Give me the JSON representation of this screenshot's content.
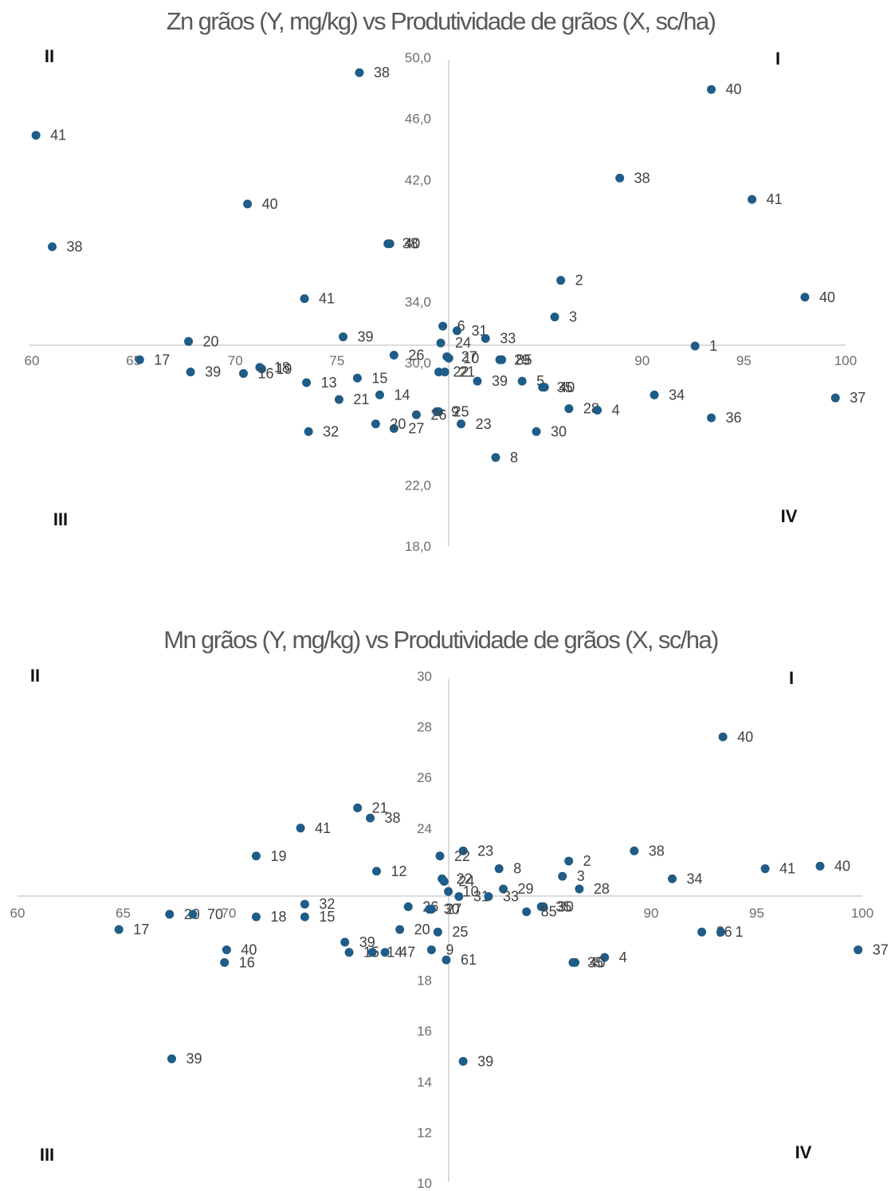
{
  "chart_data": [
    {
      "type": "scatter",
      "title": "Zn grãos (Y, mg/kg) vs Produtividade de grãos (X, sc/ha)",
      "xlim": [
        60,
        100
      ],
      "ylim": [
        18,
        50
      ],
      "x_ticks": [
        "60",
        "65",
        "70",
        "75",
        "90",
        "95",
        "100"
      ],
      "y_ticks": [
        "50,0",
        "46,0",
        "42,0",
        "34,0",
        "30,0",
        "22,0",
        "18,0"
      ],
      "quadrants": [
        "I",
        "II",
        "III",
        "IV"
      ],
      "marker_color": "#1f5c87",
      "points": [
        {
          "label": "38",
          "x": 76.1,
          "y": 49.0
        },
        {
          "label": "40",
          "x": 93.4,
          "y": 47.9
        },
        {
          "label": "41",
          "x": 60.2,
          "y": 44.9
        },
        {
          "label": "38",
          "x": 88.9,
          "y": 42.1
        },
        {
          "label": "41",
          "x": 95.4,
          "y": 40.7
        },
        {
          "label": "40",
          "x": 70.6,
          "y": 40.4
        },
        {
          "label": "38",
          "x": 61.0,
          "y": 37.6
        },
        {
          "label": "38",
          "x": 77.5,
          "y": 37.8
        },
        {
          "label": "40",
          "x": 77.6,
          "y": 37.8
        },
        {
          "label": "2",
          "x": 86.0,
          "y": 35.4
        },
        {
          "label": "41",
          "x": 73.4,
          "y": 34.2
        },
        {
          "label": "40",
          "x": 98.0,
          "y": 34.3
        },
        {
          "label": "3",
          "x": 85.7,
          "y": 33.0
        },
        {
          "label": "6",
          "x": 80.2,
          "y": 32.4
        },
        {
          "label": "31",
          "x": 80.9,
          "y": 32.1
        },
        {
          "label": "33",
          "x": 82.3,
          "y": 31.6
        },
        {
          "label": "39",
          "x": 75.3,
          "y": 31.7
        },
        {
          "label": "24",
          "x": 80.1,
          "y": 31.3
        },
        {
          "label": "20",
          "x": 67.7,
          "y": 31.4
        },
        {
          "label": "1",
          "x": 92.6,
          "y": 31.1
        },
        {
          "label": "26",
          "x": 77.8,
          "y": 30.5
        },
        {
          "label": "27",
          "x": 80.4,
          "y": 30.4
        },
        {
          "label": "10",
          "x": 80.5,
          "y": 30.3
        },
        {
          "label": "29",
          "x": 83.0,
          "y": 30.2
        },
        {
          "label": "85",
          "x": 83.1,
          "y": 30.2
        },
        {
          "label": "17",
          "x": 65.3,
          "y": 30.2
        },
        {
          "label": "18",
          "x": 71.2,
          "y": 29.7
        },
        {
          "label": "19",
          "x": 71.3,
          "y": 29.6
        },
        {
          "label": "16",
          "x": 70.4,
          "y": 29.3
        },
        {
          "label": "39",
          "x": 67.8,
          "y": 29.4
        },
        {
          "label": "22",
          "x": 80.0,
          "y": 29.4
        },
        {
          "label": "21",
          "x": 80.3,
          "y": 29.4
        },
        {
          "label": "15",
          "x": 76.0,
          "y": 29.0
        },
        {
          "label": "39",
          "x": 81.9,
          "y": 28.8
        },
        {
          "label": "5",
          "x": 84.1,
          "y": 28.8
        },
        {
          "label": "35",
          "x": 85.1,
          "y": 28.4
        },
        {
          "label": "40",
          "x": 85.2,
          "y": 28.4
        },
        {
          "label": "13",
          "x": 73.5,
          "y": 28.7
        },
        {
          "label": "14",
          "x": 77.1,
          "y": 27.9
        },
        {
          "label": "34",
          "x": 90.6,
          "y": 27.9
        },
        {
          "label": "37",
          "x": 99.5,
          "y": 27.7
        },
        {
          "label": "21",
          "x": 75.1,
          "y": 27.6
        },
        {
          "label": "28",
          "x": 86.4,
          "y": 27.0
        },
        {
          "label": "4",
          "x": 87.8,
          "y": 26.9
        },
        {
          "label": "9",
          "x": 79.9,
          "y": 26.8
        },
        {
          "label": "25",
          "x": 80.0,
          "y": 26.8
        },
        {
          "label": "26",
          "x": 78.9,
          "y": 26.6
        },
        {
          "label": "36",
          "x": 93.4,
          "y": 26.4
        },
        {
          "label": "23",
          "x": 81.1,
          "y": 26.0
        },
        {
          "label": "27",
          "x": 77.8,
          "y": 25.7
        },
        {
          "label": "20",
          "x": 76.9,
          "y": 26.0
        },
        {
          "label": "32",
          "x": 73.6,
          "y": 25.5
        },
        {
          "label": "30",
          "x": 84.8,
          "y": 25.5
        },
        {
          "label": "8",
          "x": 82.8,
          "y": 23.8
        }
      ]
    },
    {
      "type": "scatter",
      "title": "Mn grãos (Y, mg/kg) vs Produtividade de grãos (X, sc/ha)",
      "xlim": [
        60,
        100
      ],
      "ylim": [
        10,
        30
      ],
      "x_ticks": [
        "60",
        "65",
        "70",
        "90",
        "95",
        "100"
      ],
      "y_ticks": [
        "30",
        "28",
        "26",
        "24",
        "18",
        "16",
        "14",
        "12",
        "10"
      ],
      "quadrants": [
        "I",
        "II",
        "III",
        "IV"
      ],
      "marker_color": "#1f5c87",
      "points": [
        {
          "label": "40",
          "x": 93.4,
          "y": 27.6
        },
        {
          "label": "21",
          "x": 76.1,
          "y": 24.8
        },
        {
          "label": "38",
          "x": 76.7,
          "y": 24.4
        },
        {
          "label": "41",
          "x": 73.4,
          "y": 24.0
        },
        {
          "label": "23",
          "x": 81.1,
          "y": 23.1
        },
        {
          "label": "38",
          "x": 89.2,
          "y": 23.1
        },
        {
          "label": "19",
          "x": 71.3,
          "y": 22.9
        },
        {
          "label": "22",
          "x": 80.0,
          "y": 22.9
        },
        {
          "label": "2",
          "x": 86.1,
          "y": 22.7
        },
        {
          "label": "8",
          "x": 82.8,
          "y": 22.4
        },
        {
          "label": "41",
          "x": 95.4,
          "y": 22.4
        },
        {
          "label": "40",
          "x": 98.0,
          "y": 22.5
        },
        {
          "label": "12",
          "x": 77.0,
          "y": 22.3
        },
        {
          "label": "3",
          "x": 85.8,
          "y": 22.1
        },
        {
          "label": "22",
          "x": 80.1,
          "y": 22.0
        },
        {
          "label": "24",
          "x": 80.2,
          "y": 21.9
        },
        {
          "label": "34",
          "x": 91.0,
          "y": 22.0
        },
        {
          "label": "29",
          "x": 83.0,
          "y": 21.6
        },
        {
          "label": "28",
          "x": 86.6,
          "y": 21.6
        },
        {
          "label": "10",
          "x": 80.4,
          "y": 21.5
        },
        {
          "label": "31",
          "x": 80.9,
          "y": 21.3
        },
        {
          "label": "33",
          "x": 82.3,
          "y": 21.3
        },
        {
          "label": "32",
          "x": 73.6,
          "y": 21.0
        },
        {
          "label": "26",
          "x": 78.5,
          "y": 20.9
        },
        {
          "label": "30",
          "x": 79.5,
          "y": 20.8
        },
        {
          "label": "27",
          "x": 79.6,
          "y": 20.8
        },
        {
          "label": "35",
          "x": 84.8,
          "y": 20.9
        },
        {
          "label": "30",
          "x": 84.9,
          "y": 20.9
        },
        {
          "label": "85",
          "x": 84.1,
          "y": 20.7
        },
        {
          "label": "15",
          "x": 73.6,
          "y": 20.5
        },
        {
          "label": "20",
          "x": 67.2,
          "y": 20.6
        },
        {
          "label": "70",
          "x": 68.3,
          "y": 20.6
        },
        {
          "label": "17",
          "x": 64.8,
          "y": 20.0
        },
        {
          "label": "18",
          "x": 71.3,
          "y": 20.5
        },
        {
          "label": "20",
          "x": 78.1,
          "y": 20.0
        },
        {
          "label": "25",
          "x": 79.9,
          "y": 19.9
        },
        {
          "label": "36",
          "x": 92.4,
          "y": 19.9
        },
        {
          "label": "1",
          "x": 93.3,
          "y": 19.9
        },
        {
          "label": "39",
          "x": 75.5,
          "y": 19.5
        },
        {
          "label": "40",
          "x": 69.9,
          "y": 19.2
        },
        {
          "label": "15",
          "x": 75.7,
          "y": 19.1
        },
        {
          "label": "14",
          "x": 76.8,
          "y": 19.1
        },
        {
          "label": "47",
          "x": 77.4,
          "y": 19.1
        },
        {
          "label": "9",
          "x": 79.6,
          "y": 19.2
        },
        {
          "label": "37",
          "x": 99.8,
          "y": 19.2
        },
        {
          "label": "61",
          "x": 80.3,
          "y": 18.8
        },
        {
          "label": "4",
          "x": 87.8,
          "y": 18.9
        },
        {
          "label": "35",
          "x": 86.3,
          "y": 18.7
        },
        {
          "label": "40",
          "x": 86.4,
          "y": 18.7
        },
        {
          "label": "16",
          "x": 69.8,
          "y": 18.7
        },
        {
          "label": "39",
          "x": 67.3,
          "y": 14.9
        },
        {
          "label": "39",
          "x": 81.1,
          "y": 14.8
        }
      ]
    }
  ]
}
